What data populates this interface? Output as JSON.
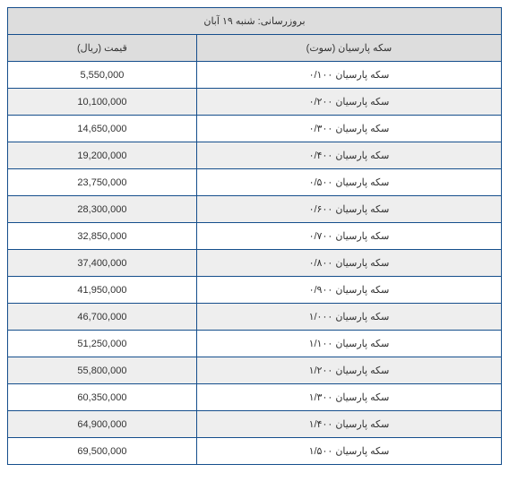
{
  "table": {
    "title": "بروزرسانی: شنبه ۱۹ آبان",
    "columns": {
      "name": "سکه پارسیان (سوت)",
      "price": "قیمت (ریال)"
    },
    "rows": [
      {
        "name": "سکه پارسیان ۰/۱۰۰",
        "price": "5,550,000"
      },
      {
        "name": "سکه پارسیان ۰/۲۰۰",
        "price": "10,100,000"
      },
      {
        "name": "سکه پارسیان ۰/۳۰۰",
        "price": "14,650,000"
      },
      {
        "name": "سکه پارسیان ۰/۴۰۰",
        "price": "19,200,000"
      },
      {
        "name": "سکه پارسیان ۰/۵۰۰",
        "price": "23,750,000"
      },
      {
        "name": "سکه پارسیان ۰/۶۰۰",
        "price": "28,300,000"
      },
      {
        "name": "سکه پارسیان ۰/۷۰۰",
        "price": "32,850,000"
      },
      {
        "name": "سکه پارسیان ۰/۸۰۰",
        "price": "37,400,000"
      },
      {
        "name": "سکه پارسیان ۰/۹۰۰",
        "price": "41,950,000"
      },
      {
        "name": "سکه پارسیان ۱/۰۰۰",
        "price": "46,700,000"
      },
      {
        "name": "سکه پارسیان ۱/۱۰۰",
        "price": "51,250,000"
      },
      {
        "name": "سکه پارسیان ۱/۲۰۰",
        "price": "55,800,000"
      },
      {
        "name": "سکه پارسیان ۱/۳۰۰",
        "price": "60,350,000"
      },
      {
        "name": "سکه پارسیان ۱/۴۰۰",
        "price": "64,900,000"
      },
      {
        "name": "سکه پارسیان ۱/۵۰۰",
        "price": "69,500,000"
      }
    ],
    "style": {
      "border_color": "#154e8c",
      "header_bg": "#dddddd",
      "row_odd_bg": "#ffffff",
      "row_even_bg": "#eeeeee",
      "text_color": "#333333",
      "font_size": 11
    }
  }
}
